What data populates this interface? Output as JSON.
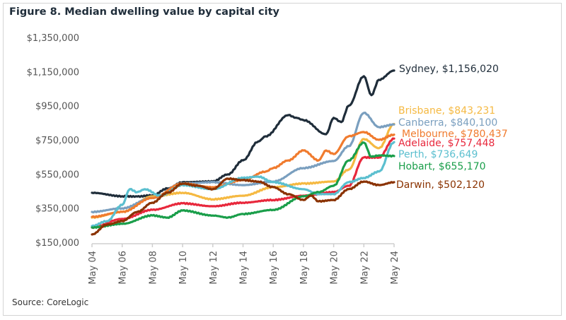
{
  "chart_data": {
    "type": "line",
    "title": "Figure 8. Median dwelling value by capital city",
    "source": "Source: CoreLogic",
    "xlabel": "",
    "ylabel": "",
    "ylim": [
      150000,
      1350000
    ],
    "yticks": [
      "$150,000",
      "$350,000",
      "$550,000",
      "$750,000",
      "$950,000",
      "$1,150,000",
      "$1,350,000"
    ],
    "ytick_values": [
      150000,
      350000,
      550000,
      750000,
      950000,
      1150000,
      1350000
    ],
    "xticks": [
      "May 04",
      "May 06",
      "May 08",
      "May 10",
      "May 12",
      "May 14",
      "May 16",
      "May 18",
      "May 20",
      "May 22",
      "May 24"
    ],
    "xlim": [
      "2004-05",
      "2024-05"
    ],
    "grid": false,
    "legend": "direct labels at right end of lines",
    "series": [
      {
        "name": "Sydney",
        "end_label": "Sydney, $1,156,020",
        "color": "#1f2d3a",
        "x": [
          "2004-05",
          "2006-05",
          "2007-05",
          "2008-05",
          "2009-05",
          "2010-05",
          "2012-05",
          "2013-05",
          "2014-05",
          "2015-05",
          "2015-11",
          "2017-05",
          "2017-11",
          "2018-05",
          "2019-11",
          "2020-05",
          "2020-11",
          "2021-05",
          "2022-05",
          "2022-11",
          "2023-05",
          "2024-05"
        ],
        "y": [
          440000,
          420000,
          418000,
          425000,
          465000,
          502000,
          506000,
          548000,
          630000,
          740000,
          771000,
          895000,
          880000,
          866000,
          783000,
          879000,
          854000,
          950000,
          1123000,
          1012000,
          1102000,
          1156020
        ]
      },
      {
        "name": "Brisbane",
        "end_label": "Brisbane, $843,231",
        "color": "#f5b942",
        "x": [
          "2004-05",
          "2006-05",
          "2008-05",
          "2010-05",
          "2012-05",
          "2014-05",
          "2016-05",
          "2018-05",
          "2020-05",
          "2021-05",
          "2022-05",
          "2023-05",
          "2024-05"
        ],
        "y": [
          295000,
          328000,
          419000,
          440000,
          402000,
          423000,
          473000,
          494000,
          506000,
          576000,
          755000,
          701000,
          843231
        ]
      },
      {
        "name": "Canberra",
        "end_label": "Canberra, $840,100",
        "color": "#7a9fbf",
        "x": [
          "2004-05",
          "2006-05",
          "2008-05",
          "2010-05",
          "2012-05",
          "2014-05",
          "2016-05",
          "2018-05",
          "2020-05",
          "2021-05",
          "2022-05",
          "2023-05",
          "2024-05"
        ],
        "y": [
          328000,
          349000,
          410000,
          494000,
          502000,
          485000,
          506000,
          585000,
          626000,
          713000,
          908000,
          825000,
          840100
        ]
      },
      {
        "name": "Melbourne",
        "end_label": "Melbourne, $780,437",
        "color": "#f07b2e",
        "x": [
          "2004-05",
          "2006-05",
          "2008-05",
          "2010-05",
          "2012-05",
          "2014-05",
          "2015-11",
          "2016-05",
          "2017-05",
          "2018-05",
          "2019-05",
          "2019-11",
          "2020-05",
          "2021-05",
          "2022-05",
          "2023-05",
          "2024-05"
        ],
        "y": [
          299000,
          328000,
          410000,
          494000,
          473000,
          514000,
          564000,
          585000,
          630000,
          688000,
          630000,
          688000,
          667000,
          771000,
          796000,
          750000,
          780437
        ]
      },
      {
        "name": "Adelaide",
        "end_label": "Adelaide, $757,448",
        "color": "#e8283c",
        "x": [
          "2004-05",
          "2006-05",
          "2008-05",
          "2010-05",
          "2012-05",
          "2014-05",
          "2016-05",
          "2018-05",
          "2020-05",
          "2021-05",
          "2022-05",
          "2023-05",
          "2024-05"
        ],
        "y": [
          237000,
          287000,
          340000,
          378000,
          361000,
          382000,
          398000,
          423000,
          444000,
          481000,
          647000,
          647000,
          757448
        ]
      },
      {
        "name": "Perth",
        "end_label": "Perth, $736,649",
        "color": "#5bbfcf",
        "x": [
          "2004-05",
          "2005-05",
          "2006-05",
          "2006-11",
          "2007-05",
          "2007-11",
          "2008-11",
          "2010-05",
          "2012-05",
          "2014-05",
          "2015-05",
          "2016-05",
          "2018-05",
          "2019-05",
          "2020-05",
          "2021-05",
          "2022-05",
          "2023-05",
          "2024-05"
        ],
        "y": [
          245000,
          274000,
          369000,
          461000,
          444000,
          461000,
          423000,
          485000,
          461000,
          527000,
          535000,
          502000,
          461000,
          432000,
          432000,
          502000,
          527000,
          564000,
          736649
        ]
      },
      {
        "name": "Hobart",
        "end_label": "Hobart, $655,170",
        "color": "#1a9e4a",
        "x": [
          "2004-05",
          "2006-05",
          "2008-05",
          "2009-05",
          "2010-05",
          "2012-05",
          "2013-05",
          "2014-05",
          "2016-05",
          "2018-05",
          "2019-05",
          "2020-05",
          "2021-05",
          "2022-05",
          "2022-11",
          "2023-05",
          "2024-05"
        ],
        "y": [
          237000,
          258000,
          307000,
          295000,
          336000,
          307000,
          295000,
          316000,
          340000,
          419000,
          444000,
          481000,
          630000,
          734000,
          651000,
          659000,
          655170
        ]
      },
      {
        "name": "Darwin",
        "end_label": "Darwin, $502,120",
        "color": "#8a3200",
        "x": [
          "2004-05",
          "2005-05",
          "2006-05",
          "2007-05",
          "2008-05",
          "2009-05",
          "2010-05",
          "2011-05",
          "2012-05",
          "2013-05",
          "2014-05",
          "2015-05",
          "2016-05",
          "2017-05",
          "2018-05",
          "2018-11",
          "2019-05",
          "2020-05",
          "2021-05",
          "2022-05",
          "2023-05",
          "2024-05"
        ],
        "y": [
          196000,
          254000,
          274000,
          328000,
          382000,
          440000,
          494000,
          481000,
          461000,
          523000,
          514000,
          506000,
          473000,
          432000,
          398000,
          423000,
          390000,
          398000,
          461000,
          506000,
          485000,
          502120
        ]
      }
    ]
  }
}
